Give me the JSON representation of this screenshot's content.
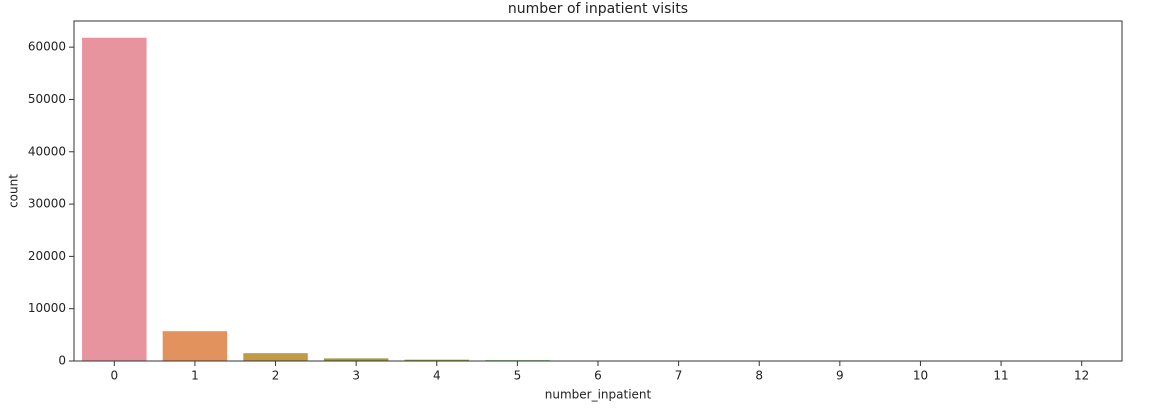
{
  "chart_data": {
    "type": "bar",
    "title": "number of inpatient visits",
    "x_label": "number_inpatient",
    "y_label": "count",
    "categories": [
      "0",
      "1",
      "2",
      "3",
      "4",
      "5",
      "6",
      "7",
      "8",
      "9",
      "10",
      "11",
      "12"
    ],
    "values": [
      61800,
      5700,
      1500,
      500,
      250,
      150,
      50,
      20,
      10,
      5,
      3,
      2,
      1
    ],
    "colors": [
      "#e8949f",
      "#e2925d",
      "#c19a48",
      "#a39c3f",
      "#89a13e",
      "#55a454",
      "#52a38f",
      "#55a1a7",
      "#58a0c0",
      "#7e98d6",
      "#ae8dd8",
      "#d585c8",
      "#e288b3"
    ],
    "ylim": [
      0,
      65000
    ],
    "yticks": [
      0,
      10000,
      20000,
      30000,
      40000,
      50000,
      60000
    ],
    "grid": false
  }
}
